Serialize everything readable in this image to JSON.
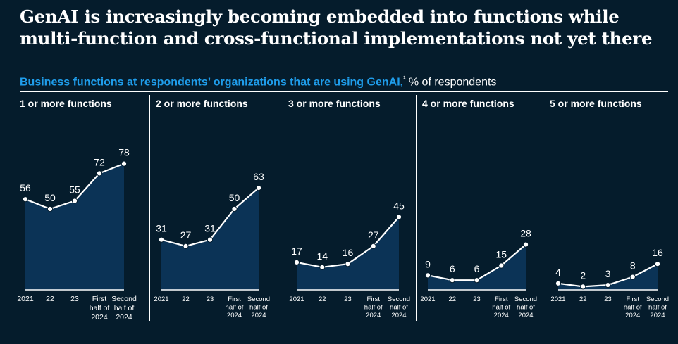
{
  "title": "GenAI is increasingly becoming embedded into functions while multi-function and cross-functional implementations not yet there",
  "title_line1": "GenAI is increasingly becoming embedded into functions while",
  "title_line2": "multi-function and cross-functional implementations not yet there",
  "subtitle_highlight": "Business functions at respondents’ organizations that are using GenAI,",
  "subtitle_footnote": "¹",
  "subtitle_rest": " % of respondents",
  "colors": {
    "background": "#051C2C",
    "area": "#0B3356",
    "accent": "#1F9DEB",
    "line": "#FFFFFF"
  },
  "chart_data": [
    {
      "type": "area",
      "title": "1 or more functions",
      "categories": [
        "2021",
        "22",
        "23",
        "First half of 2024",
        "Second half of 2024"
      ],
      "values": [
        56,
        50,
        55,
        72,
        78
      ],
      "ylim": [
        0,
        100
      ]
    },
    {
      "type": "area",
      "title": "2 or more functions",
      "categories": [
        "2021",
        "22",
        "23",
        "First half of 2024",
        "Second half of 2024"
      ],
      "values": [
        31,
        27,
        31,
        50,
        63
      ],
      "ylim": [
        0,
        100
      ]
    },
    {
      "type": "area",
      "title": "3 or more functions",
      "categories": [
        "2021",
        "22",
        "23",
        "First half of 2024",
        "Second half of 2024"
      ],
      "values": [
        17,
        14,
        16,
        27,
        45
      ],
      "ylim": [
        0,
        100
      ]
    },
    {
      "type": "area",
      "title": "4 or more functions",
      "categories": [
        "2021",
        "22",
        "23",
        "First half of 2024",
        "Second half of 2024"
      ],
      "values": [
        9,
        6,
        6,
        15,
        28
      ],
      "ylim": [
        0,
        100
      ]
    },
    {
      "type": "area",
      "title": "5 or more functions",
      "categories": [
        "2021",
        "22",
        "23",
        "First half of 2024",
        "Second half of 2024"
      ],
      "values": [
        4,
        2,
        3,
        8,
        16
      ],
      "ylim": [
        0,
        100
      ]
    }
  ]
}
